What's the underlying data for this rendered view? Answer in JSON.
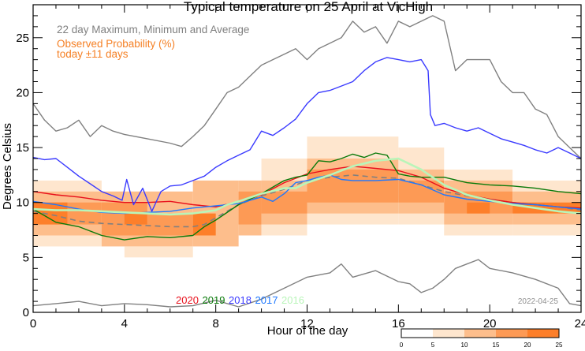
{
  "chart_data": {
    "type": "line",
    "title": "Typical temperature on 25 April at VicHigh",
    "xlabel": "Hour of the day",
    "ylabel": "Degrees Celsius",
    "xlim": [
      0,
      24
    ],
    "ylim": [
      0,
      28
    ],
    "x_ticks": [
      0,
      4,
      8,
      12,
      16,
      20,
      24
    ],
    "y_ticks": [
      0,
      5,
      10,
      15,
      20,
      25
    ],
    "grid": false,
    "legend": {
      "placement": "top-left",
      "summary_label": "22 day Maximum, Minimum and Average",
      "probability_label_line1": "Observed Probability (%)",
      "probability_label_line2": "today ±11 days"
    },
    "date_stamp": "2022-04-25",
    "colorbar": {
      "ticks": [
        "0",
        "5",
        "10",
        "15",
        "20",
        "25"
      ],
      "colors": [
        "#ffffff",
        "#fee6ce",
        "#fdbe8c",
        "#fd9a55",
        "#fd7f2a"
      ]
    },
    "probability_grid": {
      "description": "Percent probability per hour-bin (x, 1 h) and 1 °C bin (y)",
      "cells": [
        {
          "x0": 0,
          "x1": 3,
          "y0": 6,
          "y1": 12,
          "level": 1
        },
        {
          "x0": 0,
          "x1": 3,
          "y0": 7,
          "y1": 11,
          "level": 2
        },
        {
          "x0": 0,
          "x1": 3,
          "y0": 8,
          "y1": 10,
          "level": 3
        },
        {
          "x0": 0,
          "x1": 1.5,
          "y0": 8,
          "y1": 10,
          "level": 4
        },
        {
          "x0": 3,
          "x1": 7,
          "y0": 6,
          "y1": 11,
          "level": 2
        },
        {
          "x0": 4,
          "x1": 7,
          "y0": 5,
          "y1": 6,
          "level": 1
        },
        {
          "x0": 3,
          "x1": 5,
          "y0": 7,
          "y1": 10,
          "level": 3
        },
        {
          "x0": 4,
          "x1": 5,
          "y0": 8,
          "y1": 9,
          "level": 4
        },
        {
          "x0": 5,
          "x1": 7,
          "y0": 7,
          "y1": 9,
          "level": 3
        },
        {
          "x0": 7,
          "x1": 9,
          "y0": 6,
          "y1": 12,
          "level": 2
        },
        {
          "x0": 7,
          "x1": 8,
          "y0": 7,
          "y1": 9,
          "level": 4
        },
        {
          "x0": 9,
          "x1": 10,
          "y0": 7,
          "y1": 12,
          "level": 2
        },
        {
          "x0": 9,
          "x1": 10,
          "y0": 8,
          "y1": 11,
          "level": 3
        },
        {
          "x0": 10,
          "x1": 12,
          "y0": 7,
          "y1": 14,
          "level": 1
        },
        {
          "x0": 10,
          "x1": 12,
          "y0": 8,
          "y1": 12,
          "level": 2
        },
        {
          "x0": 10,
          "x1": 12,
          "y0": 9,
          "y1": 11,
          "level": 3
        },
        {
          "x0": 12,
          "x1": 16,
          "y0": 8,
          "y1": 16,
          "level": 1
        },
        {
          "x0": 12,
          "x1": 16,
          "y0": 9,
          "y1": 14,
          "level": 2
        },
        {
          "x0": 12,
          "x1": 16,
          "y0": 10,
          "y1": 13,
          "level": 3
        },
        {
          "x0": 16,
          "x1": 18,
          "y0": 8,
          "y1": 15,
          "level": 1
        },
        {
          "x0": 16,
          "x1": 18,
          "y0": 9,
          "y1": 13,
          "level": 2
        },
        {
          "x0": 16,
          "x1": 18,
          "y0": 10,
          "y1": 12,
          "level": 3
        },
        {
          "x0": 18,
          "x1": 21,
          "y0": 7,
          "y1": 13,
          "level": 1
        },
        {
          "x0": 18,
          "x1": 21,
          "y0": 8,
          "y1": 12,
          "level": 2
        },
        {
          "x0": 18,
          "x1": 21,
          "y0": 9,
          "y1": 11,
          "level": 3
        },
        {
          "x0": 19,
          "x1": 20,
          "y0": 9,
          "y1": 10,
          "level": 4
        },
        {
          "x0": 21,
          "x1": 24,
          "y0": 7,
          "y1": 12,
          "level": 1
        },
        {
          "x0": 21,
          "x1": 24,
          "y0": 8,
          "y1": 11,
          "level": 2
        },
        {
          "x0": 21,
          "x1": 24,
          "y0": 9,
          "y1": 10,
          "level": 4
        }
      ]
    },
    "series": [
      {
        "name": "22 day Maximum",
        "color": "#808080",
        "style": "solid",
        "x": [
          0,
          0.5,
          1,
          1.5,
          2,
          2.5,
          3,
          3.5,
          4,
          5,
          6,
          6.5,
          7,
          7.5,
          8,
          8.5,
          9,
          9.5,
          10,
          10.5,
          11,
          11.5,
          12,
          12.5,
          13,
          13.5,
          14,
          14.5,
          15,
          15.5,
          16,
          16.5,
          17,
          17.5,
          18,
          18.5,
          19,
          19.5,
          20,
          20.5,
          21,
          21.5,
          22,
          22.5,
          23,
          23.5,
          24
        ],
        "y": [
          19,
          17.5,
          16.5,
          16.8,
          17.5,
          16,
          17,
          16.5,
          16.2,
          15.8,
          15.4,
          15.1,
          16,
          17,
          18.5,
          20,
          20.5,
          21.5,
          22.5,
          23,
          23.5,
          24,
          23,
          24,
          24.5,
          25,
          26.5,
          25.5,
          26,
          24.5,
          26.5,
          26,
          26.5,
          27,
          26.5,
          22,
          23,
          23,
          23,
          21,
          20,
          20,
          18.5,
          18,
          16,
          15,
          14
        ]
      },
      {
        "name": "22 day Minimum",
        "color": "#808080",
        "style": "solid",
        "x": [
          0,
          1,
          2,
          3,
          4,
          5,
          6,
          7,
          8,
          9,
          10,
          11,
          12,
          13,
          13.5,
          14,
          15,
          16,
          16.5,
          17,
          17.5,
          18,
          18.5,
          19,
          19.5,
          20,
          21,
          22,
          23,
          23.5,
          24
        ],
        "y": [
          0.6,
          0.8,
          1.0,
          0.6,
          0.8,
          0.7,
          0.5,
          0.6,
          1.1,
          0.5,
          1.2,
          2.2,
          3.2,
          3.6,
          4.4,
          3.2,
          3.8,
          2.8,
          2.6,
          1.8,
          2.2,
          3.0,
          4.0,
          4.4,
          4.8,
          4.0,
          3.6,
          3.0,
          2.2,
          0.8,
          0.6
        ]
      },
      {
        "name": "22 day Average",
        "color": "#808080",
        "style": "dashed",
        "x": [
          0,
          1,
          2,
          3,
          4,
          5,
          6,
          7,
          7.5,
          8,
          9,
          10,
          11,
          12,
          13,
          14,
          15,
          16,
          17,
          18,
          19,
          20,
          21,
          22,
          23,
          24
        ],
        "y": [
          9.2,
          8.8,
          8.3,
          8.1,
          8.0,
          7.9,
          7.8,
          7.8,
          8.0,
          8.6,
          9.8,
          10.6,
          11.2,
          12.0,
          12.3,
          12.5,
          12.3,
          12.2,
          11.6,
          11.0,
          10.6,
          10.3,
          10.0,
          9.8,
          9.6,
          9.3
        ]
      },
      {
        "name": "2020",
        "color": "#e8101c",
        "style": "solid",
        "x": [
          0,
          1,
          2,
          3,
          4,
          5,
          6,
          7,
          8,
          9,
          10,
          11,
          12,
          13,
          14,
          15,
          16,
          17,
          18,
          19,
          20,
          21,
          22,
          23,
          24
        ],
        "y": [
          11,
          10.7,
          10.5,
          10.2,
          10.0,
          10.0,
          10.1,
          9.8,
          9.6,
          10.1,
          10.7,
          11.8,
          12.6,
          13.0,
          13.3,
          13.1,
          12.9,
          12.3,
          11.3,
          10.7,
          10.3,
          10.0,
          9.8,
          9.6,
          9.5
        ]
      },
      {
        "name": "2019",
        "color": "#0a7a0a",
        "style": "solid",
        "x": [
          0,
          0.5,
          1,
          2,
          3,
          4,
          5,
          6,
          7,
          7.5,
          8,
          9,
          10,
          11,
          11.5,
          12,
          12.5,
          13,
          13.5,
          14,
          14.5,
          15,
          15.5,
          16,
          16.5,
          17,
          18,
          19,
          20,
          21,
          22,
          23,
          24
        ],
        "y": [
          9.4,
          8.8,
          8.2,
          7.8,
          7.0,
          6.6,
          6.9,
          6.8,
          7.0,
          7.8,
          8.4,
          9.8,
          10.8,
          12.0,
          12.3,
          12.5,
          13.8,
          13.7,
          14.0,
          14.4,
          14.1,
          14.5,
          14.3,
          12.6,
          12.4,
          12.3,
          12.3,
          11.8,
          11.6,
          11.5,
          11.3,
          11.0,
          10.8
        ]
      },
      {
        "name": "2018",
        "color": "#3a3aff",
        "style": "solid",
        "x": [
          0,
          0.5,
          1,
          1.5,
          2,
          2.5,
          3,
          3.5,
          3.9,
          4.1,
          4.4,
          4.8,
          5.2,
          5.6,
          6,
          6.5,
          7,
          7.5,
          8,
          8.5,
          9,
          9.5,
          10,
          10.5,
          11,
          11.5,
          12,
          12.5,
          13,
          13.5,
          14,
          14.5,
          15,
          15.5,
          16,
          16.5,
          17,
          17.3,
          17.4,
          17.6,
          18,
          18.5,
          19,
          19.5,
          20,
          20.5,
          21,
          21.5,
          22,
          22.5,
          23,
          23.5,
          24
        ],
        "y": [
          14.1,
          13.9,
          14.0,
          13.2,
          12.4,
          11.7,
          11.0,
          10.6,
          10.2,
          12.1,
          9.8,
          11.3,
          9.2,
          11.0,
          11.5,
          11.6,
          12.0,
          12.4,
          13.2,
          13.8,
          14.3,
          14.8,
          16.5,
          16.1,
          16.8,
          17.6,
          19.0,
          20.0,
          20.2,
          20.6,
          21.0,
          22.0,
          22.8,
          23.2,
          23.0,
          22.8,
          23.0,
          22.0,
          18.0,
          17.0,
          17.2,
          16.8,
          16.5,
          16.8,
          16.3,
          15.8,
          15.5,
          15.2,
          14.8,
          14.5,
          15.0,
          14.5,
          14.0
        ]
      },
      {
        "name": "2017",
        "color": "#1e78ff",
        "style": "solid",
        "x": [
          0,
          1,
          2,
          3,
          4,
          5,
          6,
          7,
          8,
          9,
          9.5,
          10,
          10.5,
          11,
          11.5,
          12,
          12.5,
          13,
          13.5,
          14,
          15,
          16,
          17,
          18,
          19,
          20,
          21,
          22,
          23,
          24
        ],
        "y": [
          10.1,
          9.8,
          9.4,
          9.1,
          9.0,
          9.1,
          9.2,
          9.5,
          9.7,
          9.9,
          10.2,
          10.5,
          10.1,
          10.8,
          11.8,
          12.0,
          12.3,
          12.5,
          12.1,
          12.0,
          12.0,
          12.1,
          11.6,
          10.7,
          10.3,
          10.1,
          9.9,
          9.8,
          9.6,
          9.4
        ]
      },
      {
        "name": "2016",
        "color": "#b9f5b9",
        "style": "solid",
        "x": [
          0,
          1,
          2,
          3,
          4,
          5,
          6,
          7,
          8,
          8.5,
          9,
          10,
          11,
          11.5,
          12,
          13,
          13.5,
          14,
          15,
          16,
          17,
          18,
          19,
          20,
          21,
          22,
          23,
          24
        ],
        "y": [
          9.4,
          9.3,
          9.3,
          9.2,
          9.1,
          9.0,
          8.9,
          9.0,
          9.3,
          9.8,
          10.1,
          10.8,
          11.3,
          11.3,
          11.8,
          12.5,
          12.9,
          13.3,
          13.8,
          14.0,
          13.0,
          11.6,
          10.7,
          10.2,
          9.8,
          9.5,
          9.2,
          9.0
        ]
      }
    ]
  }
}
